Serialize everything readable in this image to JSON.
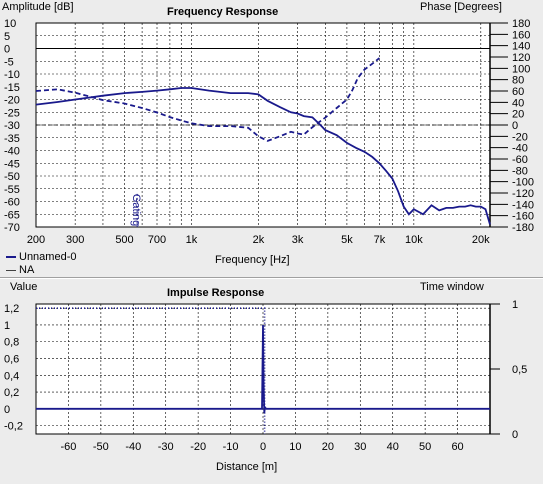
{
  "chart_data": [
    {
      "type": "line",
      "title": "Frequency Response",
      "ylabel": "Amplitude [dB]",
      "y2label": "Phase [Degrees]",
      "xlabel": "Frequency [Hz]",
      "xscale": "log",
      "xlim": [
        200,
        22000
      ],
      "ylim": [
        -70,
        10
      ],
      "y2lim": [
        -180,
        180
      ],
      "x_ticks": [
        200,
        300,
        500,
        700,
        1000,
        2000,
        3000,
        5000,
        7000,
        10000,
        20000
      ],
      "x_tick_labels": [
        "200",
        "300",
        "500",
        "700",
        "1k",
        "2k",
        "3k",
        "5k",
        "7k",
        "10k",
        "20k"
      ],
      "y_ticks": [
        10,
        5,
        0,
        -5,
        -10,
        -15,
        -20,
        -25,
        -30,
        -35,
        -40,
        -45,
        -50,
        -55,
        -60,
        -65,
        -70
      ],
      "y2_ticks": [
        180,
        160,
        140,
        120,
        100,
        80,
        60,
        40,
        20,
        0,
        -20,
        -40,
        -60,
        -80,
        -100,
        -120,
        -140,
        -160,
        -180
      ],
      "annotation": "Gating",
      "annotation_x": 570,
      "grid": true,
      "legend": [
        "Unnamed-0",
        "NA"
      ],
      "series": [
        {
          "name": "Unnamed-0",
          "style": "solid",
          "axis": "amplitude",
          "x": [
            200,
            250,
            300,
            400,
            500,
            600,
            700,
            800,
            900,
            1000,
            1200,
            1500,
            1800,
            2000,
            2200,
            2500,
            2800,
            3000,
            3200,
            3500,
            3800,
            4000,
            4500,
            5000,
            5500,
            6000,
            6500,
            7000,
            7500,
            8000,
            8500,
            9000,
            9500,
            10000,
            11000,
            12000,
            13000,
            14000,
            15000,
            16000,
            17000,
            18000,
            19000,
            20000,
            21000,
            22000
          ],
          "y": [
            -22,
            -21,
            -20,
            -18.5,
            -17.5,
            -17,
            -16.5,
            -16,
            -15.5,
            -15.5,
            -16.5,
            -17.5,
            -17.5,
            -18,
            -20.5,
            -23,
            -25,
            -25.5,
            -26.5,
            -27,
            -30,
            -32,
            -34,
            -37,
            -39,
            -40.5,
            -42.5,
            -45,
            -48,
            -51,
            -56,
            -62,
            -65,
            -63,
            -65,
            -61.5,
            -63.5,
            -62.5,
            -62.5,
            -62,
            -62,
            -61.5,
            -62,
            -62,
            -63,
            -69
          ]
        },
        {
          "name": "Unnamed-0",
          "style": "dashed",
          "axis": "phase",
          "x": [
            200,
            250,
            300,
            400,
            500,
            600,
            700,
            800,
            900,
            1000,
            1200,
            1500,
            1800,
            2000,
            2200,
            2500,
            2800,
            3000,
            3200,
            3400,
            3600,
            4000,
            4500,
            5000,
            5300,
            5600,
            6000,
            6500,
            7000
          ],
          "y": [
            60,
            63,
            57,
            44,
            38,
            30,
            22,
            14,
            8,
            3,
            -2,
            -2,
            -5,
            -20,
            -28,
            -20,
            -12,
            -15,
            -17,
            -8,
            0,
            13,
            30,
            45,
            62,
            83,
            98,
            108,
            118
          ]
        }
      ]
    },
    {
      "type": "line",
      "title": "Impulse Response",
      "ylabel": "Value",
      "y2label": "Time window",
      "xlabel": "Distance [m]",
      "xlim": [
        -70,
        70
      ],
      "ylim": [
        -0.3,
        1.25
      ],
      "y2lim": [
        0,
        1
      ],
      "x_ticks": [
        -60,
        -50,
        -40,
        -30,
        -20,
        -10,
        0,
        10,
        20,
        30,
        40,
        50,
        60
      ],
      "x_tick_labels": [
        "-60",
        "-50",
        "-40",
        "-30",
        "-20",
        "-10",
        "0",
        "10",
        "20",
        "30",
        "40",
        "50",
        "60"
      ],
      "y_ticks": [
        1.2,
        1,
        0.8,
        0.6,
        0.4,
        0.2,
        0,
        -0.2
      ],
      "y_tick_labels": [
        "1,2",
        "1",
        "0,8",
        "0,6",
        "0,4",
        "0,2",
        "0",
        "-0,2"
      ],
      "y2_ticks": [
        1,
        0.5,
        0
      ],
      "y2_tick_labels": [
        "1",
        "0,5",
        "0"
      ],
      "grid": true,
      "series": [
        {
          "name": "Unnamed-0",
          "style": "solid",
          "x": [
            -70,
            -0.3,
            0,
            0.2,
            0.4,
            0.6,
            1.0,
            70
          ],
          "y": [
            0,
            0,
            1.0,
            0.3,
            -0.05,
            0.02,
            0,
            0
          ]
        },
        {
          "name": "Time window",
          "style": "dotted",
          "x": [
            -70,
            0.5,
            0.5
          ],
          "y": [
            1.2,
            1.2,
            -0.3
          ]
        }
      ]
    }
  ]
}
